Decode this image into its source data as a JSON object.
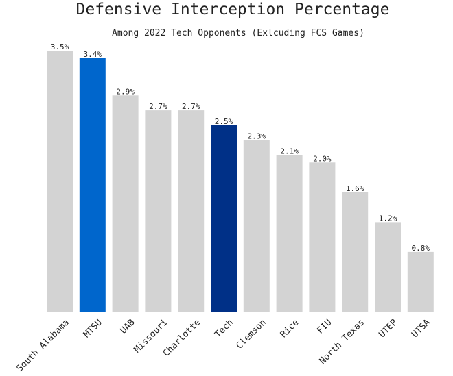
{
  "colors": {
    "default_bar": "#d3d3d3",
    "highlight_bar_mtsu": "#0066cc",
    "highlight_bar_tech": "#003087",
    "text": "#222222"
  },
  "chart_data": {
    "type": "bar",
    "title": "Defensive Interception Percentage",
    "subtitle": "Among 2022 Tech Opponents (Exlcuding FCS Games)",
    "xlabel": "",
    "ylabel": "",
    "ylim": [
      0,
      3.5
    ],
    "grid": false,
    "legend": "none",
    "categories": [
      "South Alabama",
      "MTSU",
      "UAB",
      "Missouri",
      "Charlotte",
      "Tech",
      "Clemson",
      "Rice",
      "FIU",
      "North Texas",
      "UTEP",
      "UTSA"
    ],
    "values": [
      3.5,
      3.4,
      2.9,
      2.7,
      2.7,
      2.5,
      2.3,
      2.1,
      2.0,
      1.6,
      1.2,
      0.8
    ],
    "value_labels": [
      "3.5%",
      "3.4%",
      "2.9%",
      "2.7%",
      "2.7%",
      "2.5%",
      "2.3%",
      "2.1%",
      "2.0%",
      "1.6%",
      "1.2%",
      "0.8%"
    ],
    "bar_colors": [
      "#d3d3d3",
      "#0066cc",
      "#d3d3d3",
      "#d3d3d3",
      "#d3d3d3",
      "#003087",
      "#d3d3d3",
      "#d3d3d3",
      "#d3d3d3",
      "#d3d3d3",
      "#d3d3d3",
      "#d3d3d3"
    ]
  }
}
